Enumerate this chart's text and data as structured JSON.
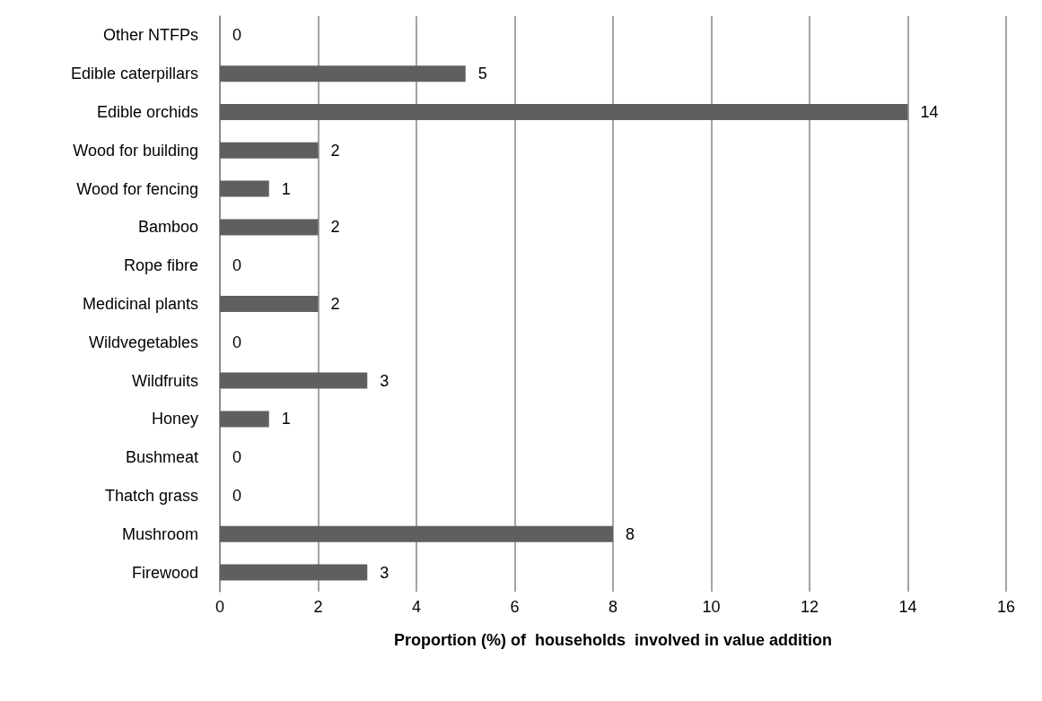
{
  "chart_data": {
    "type": "bar",
    "orientation": "horizontal",
    "xlabel": "Proportion (%) of  households  involved in value addition",
    "categories": [
      "Other NTFPs",
      "Edible caterpillars",
      "Edible orchids",
      "Wood for building",
      "Wood for fencing",
      "Bamboo",
      "Rope fibre",
      "Medicinal plants",
      "Wildvegetables",
      "Wildfruits",
      "Honey",
      "Bushmeat",
      "Thatch grass",
      "Mushroom",
      "Firewood"
    ],
    "values": [
      0,
      5,
      14,
      2,
      1,
      2,
      0,
      2,
      0,
      3,
      1,
      0,
      0,
      8,
      3
    ],
    "color": "#5f5f5f",
    "xlim": [
      0,
      16
    ],
    "xticks": [
      0,
      2,
      4,
      6,
      8,
      10,
      12,
      14,
      16
    ],
    "grid": "x",
    "data_labels": true
  }
}
